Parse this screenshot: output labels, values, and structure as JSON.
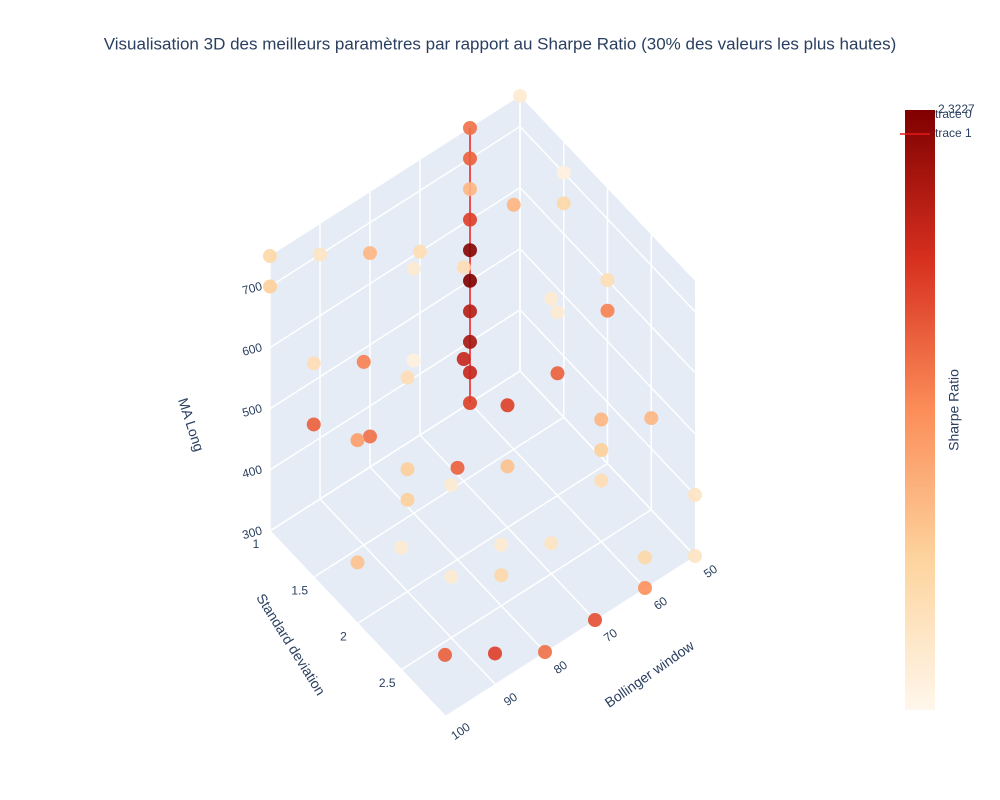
{
  "chart_data": {
    "type": "scatter3d",
    "title": "Visualisation 3D des meilleurs paramètres par rapport au Sharpe Ratio (30% des valeurs les plus hautes)",
    "xlabel": "Bollinger window",
    "ylabel": "Standard deviation",
    "zlabel": "MA Long",
    "xlim": [
      50,
      100
    ],
    "xticks": [
      50,
      60,
      70,
      80,
      90,
      100
    ],
    "ylim": [
      1,
      3
    ],
    "yticks": [
      1,
      1.5,
      2,
      2.5
    ],
    "zlim": [
      300,
      750
    ],
    "zticks": [
      300,
      400,
      500,
      600,
      700
    ],
    "colorscale": [
      "#fff7ec",
      "#fdd49e",
      "#fc8d59",
      "#d7301f",
      "#7f0000"
    ],
    "colorbar": {
      "title": "Sharpe Ratio",
      "cmin": 1.2,
      "cmax": 2.3227,
      "max_label": "2.3227"
    },
    "series": [
      {
        "name": "trace 0",
        "mode": "markers",
        "x": [
          100,
          100,
          100,
          100,
          100,
          100,
          90,
          90,
          90,
          90,
          90,
          90,
          80,
          80,
          80,
          80,
          80,
          80,
          70,
          70,
          70,
          70,
          70,
          70,
          60,
          60,
          60,
          60,
          60,
          60,
          50,
          50,
          50,
          50,
          50,
          50,
          100,
          90,
          80,
          70,
          60,
          50,
          100,
          90,
          80,
          70,
          60,
          50
        ],
        "y": [
          1,
          1.5,
          2,
          2.5,
          3,
          1,
          1,
          1.5,
          2,
          2.5,
          3,
          2,
          1,
          1.5,
          2,
          2.5,
          3,
          1.5,
          1,
          1.5,
          2,
          2.5,
          3,
          2.5,
          1.5,
          2,
          2.5,
          3,
          2,
          2.5,
          1,
          1.5,
          2,
          2.5,
          3,
          2,
          1.5,
          2,
          2.5,
          2,
          3,
          3,
          2,
          2.5,
          1,
          1.5,
          2.5,
          1.5
        ],
        "z": [
          700,
          650,
          600,
          500,
          400,
          750,
          700,
          600,
          500,
          400,
          350,
          650,
          650,
          550,
          450,
          350,
          300,
          700,
          600,
          500,
          400,
          350,
          300,
          750,
          700,
          500,
          400,
          300,
          600,
          450,
          750,
          650,
          550,
          450,
          300,
          600,
          550,
          450,
          400,
          500,
          350,
          400,
          400,
          550,
          350,
          650,
          500,
          700
        ],
        "values": [
          1.5,
          1.4,
          1.7,
          1.3,
          1.9,
          1.45,
          1.35,
          1.8,
          1.5,
          1.3,
          2.0,
          1.4,
          1.6,
          1.25,
          1.9,
          1.45,
          1.85,
          1.3,
          1.4,
          2.1,
          1.55,
          1.35,
          1.95,
          1.3,
          1.6,
          1.9,
          1.4,
          1.75,
          1.3,
          1.5,
          1.3,
          1.45,
          1.8,
          1.6,
          1.35,
          1.4,
          1.9,
          1.5,
          1.3,
          2.0,
          1.45,
          1.35,
          1.55,
          1.3,
          1.85,
          1.4,
          1.6,
          1.25
        ]
      },
      {
        "name": "trace 1",
        "mode": "lines+markers",
        "color": "#e8191c",
        "x": [
          60,
          60,
          60,
          60,
          60,
          60,
          60,
          60,
          60,
          60
        ],
        "y": [
          1,
          1,
          1,
          1,
          1,
          1,
          1,
          1,
          1,
          1
        ],
        "z": [
          300,
          350,
          400,
          450,
          500,
          550,
          600,
          650,
          700,
          750
        ],
        "values": [
          2.0,
          2.1,
          2.2,
          2.15,
          2.3227,
          2.3,
          2.0,
          1.6,
          1.9,
          1.85
        ]
      }
    ]
  }
}
